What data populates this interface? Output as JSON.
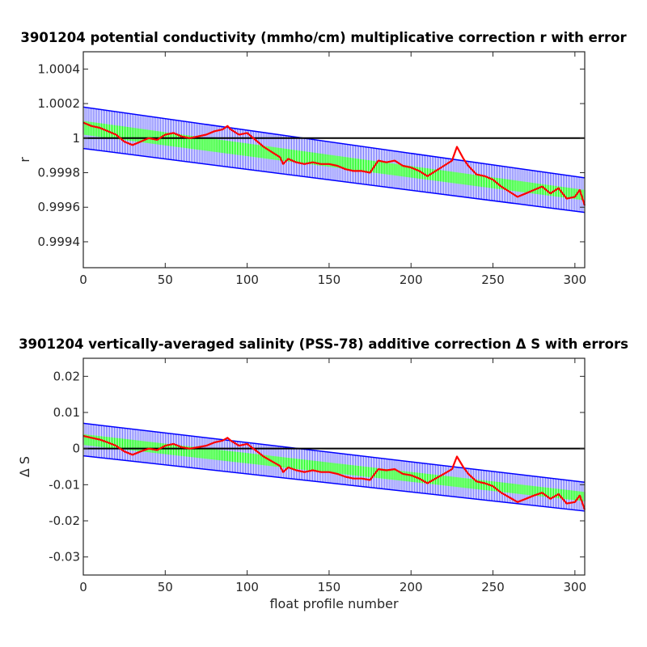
{
  "chart_data": [
    {
      "type": "line",
      "title": "3901204 potential conductivity (mmho/cm) multiplicative correction r with error",
      "xlabel": "",
      "ylabel": "r",
      "xlim": [
        0,
        306
      ],
      "ylim": [
        0.99925,
        1.0005
      ],
      "xticks": [
        0,
        50,
        100,
        150,
        200,
        250,
        300
      ],
      "xtick_labels": [
        "0",
        "50",
        "100",
        "150",
        "200",
        "250",
        "300"
      ],
      "yticks": [
        0.9994,
        0.9996,
        0.9998,
        1.0,
        1.0002,
        1.0004
      ],
      "ytick_labels": [
        "0.9994",
        "0.9996",
        "0.9998",
        "1",
        "1.0002",
        "1.0004"
      ],
      "grid": false,
      "reference_line": 1.0,
      "fit_center": [
        1.00006,
        0.99967
      ],
      "blue_band_halfwidth": [
        0.00012,
        0.0001
      ],
      "green_band_halfwidth": [
        4e-05,
        3e-05
      ],
      "series": [
        {
          "x": [
            0,
            5,
            10,
            15,
            20,
            25,
            30,
            35,
            40,
            45,
            50,
            55,
            60,
            65,
            70,
            75,
            80,
            85,
            88,
            90,
            95,
            100,
            105,
            110,
            115,
            120,
            122,
            125,
            130,
            135,
            140,
            145,
            150,
            155,
            160,
            165,
            170,
            175,
            180,
            185,
            190,
            195,
            200,
            205,
            210,
            215,
            220,
            225,
            228,
            232,
            235,
            240,
            245,
            250,
            255,
            260,
            265,
            270,
            275,
            280,
            285,
            290,
            295,
            300,
            303,
            306
          ],
          "y": [
            1.00009,
            1.00007,
            1.00006,
            1.00004,
            1.00002,
            0.99998,
            0.99996,
            0.99998,
            1.0,
            0.99999,
            1.00002,
            1.00003,
            1.00001,
            1.0,
            1.00001,
            1.00002,
            1.00004,
            1.00005,
            1.00007,
            1.00005,
            1.00002,
            1.00003,
            0.99999,
            0.99995,
            0.99992,
            0.99989,
            0.99985,
            0.99988,
            0.99986,
            0.99985,
            0.99986,
            0.99985,
            0.99985,
            0.99984,
            0.99982,
            0.99981,
            0.99981,
            0.9998,
            0.99987,
            0.99986,
            0.99987,
            0.99984,
            0.99983,
            0.99981,
            0.99978,
            0.99981,
            0.99984,
            0.99987,
            0.99995,
            0.99988,
            0.99984,
            0.99979,
            0.99978,
            0.99976,
            0.99972,
            0.99969,
            0.99966,
            0.99968,
            0.9997,
            0.99972,
            0.99968,
            0.99971,
            0.99965,
            0.99966,
            0.9997,
            0.99961
          ]
        }
      ]
    },
    {
      "type": "line",
      "title": "3901204 vertically-averaged salinity (PSS-78) additive correction Δ S with errors",
      "xlabel": "float profile number",
      "ylabel": "Δ S",
      "xlim": [
        0,
        306
      ],
      "ylim": [
        -0.035,
        0.025
      ],
      "xticks": [
        0,
        50,
        100,
        150,
        200,
        250,
        300
      ],
      "xtick_labels": [
        "0",
        "50",
        "100",
        "150",
        "200",
        "250",
        "300"
      ],
      "yticks": [
        -0.03,
        -0.02,
        -0.01,
        0,
        0.01,
        0.02
      ],
      "ytick_labels": [
        "-0.03",
        "-0.02",
        "-0.01",
        "0",
        "0.01",
        "0.02"
      ],
      "grid": false,
      "reference_line": 0,
      "fit_center": [
        0.0025,
        -0.0133
      ],
      "blue_band_halfwidth": [
        0.0045,
        0.004
      ],
      "green_band_halfwidth": [
        0.0015,
        0.0013
      ],
      "series": [
        {
          "x": [
            0,
            5,
            10,
            15,
            20,
            25,
            30,
            35,
            40,
            45,
            50,
            55,
            60,
            65,
            70,
            75,
            80,
            85,
            88,
            90,
            95,
            100,
            105,
            110,
            115,
            120,
            122,
            125,
            130,
            135,
            140,
            145,
            150,
            155,
            160,
            165,
            170,
            175,
            180,
            185,
            190,
            195,
            200,
            205,
            210,
            215,
            220,
            225,
            228,
            232,
            235,
            240,
            245,
            250,
            255,
            260,
            265,
            270,
            275,
            280,
            285,
            290,
            295,
            300,
            303,
            306
          ],
          "y": [
            0.0035,
            0.003,
            0.0025,
            0.0017,
            0.0008,
            -0.0008,
            -0.0017,
            -0.0008,
            0.0,
            -0.0004,
            0.0008,
            0.0013,
            0.0004,
            0.0,
            0.0004,
            0.0008,
            0.0017,
            0.0022,
            0.003,
            0.0022,
            0.0008,
            0.0013,
            -0.0004,
            -0.0022,
            -0.0035,
            -0.0048,
            -0.0065,
            -0.0052,
            -0.006,
            -0.0065,
            -0.006,
            -0.0065,
            -0.0065,
            -0.007,
            -0.0078,
            -0.0083,
            -0.0083,
            -0.0087,
            -0.0057,
            -0.006,
            -0.0057,
            -0.007,
            -0.0074,
            -0.0083,
            -0.0096,
            -0.0083,
            -0.007,
            -0.0057,
            -0.0022,
            -0.0052,
            -0.007,
            -0.0091,
            -0.0096,
            -0.0104,
            -0.0122,
            -0.0135,
            -0.0148,
            -0.0139,
            -0.013,
            -0.0122,
            -0.0139,
            -0.0126,
            -0.0152,
            -0.0148,
            -0.013,
            -0.0169
          ]
        }
      ]
    }
  ]
}
